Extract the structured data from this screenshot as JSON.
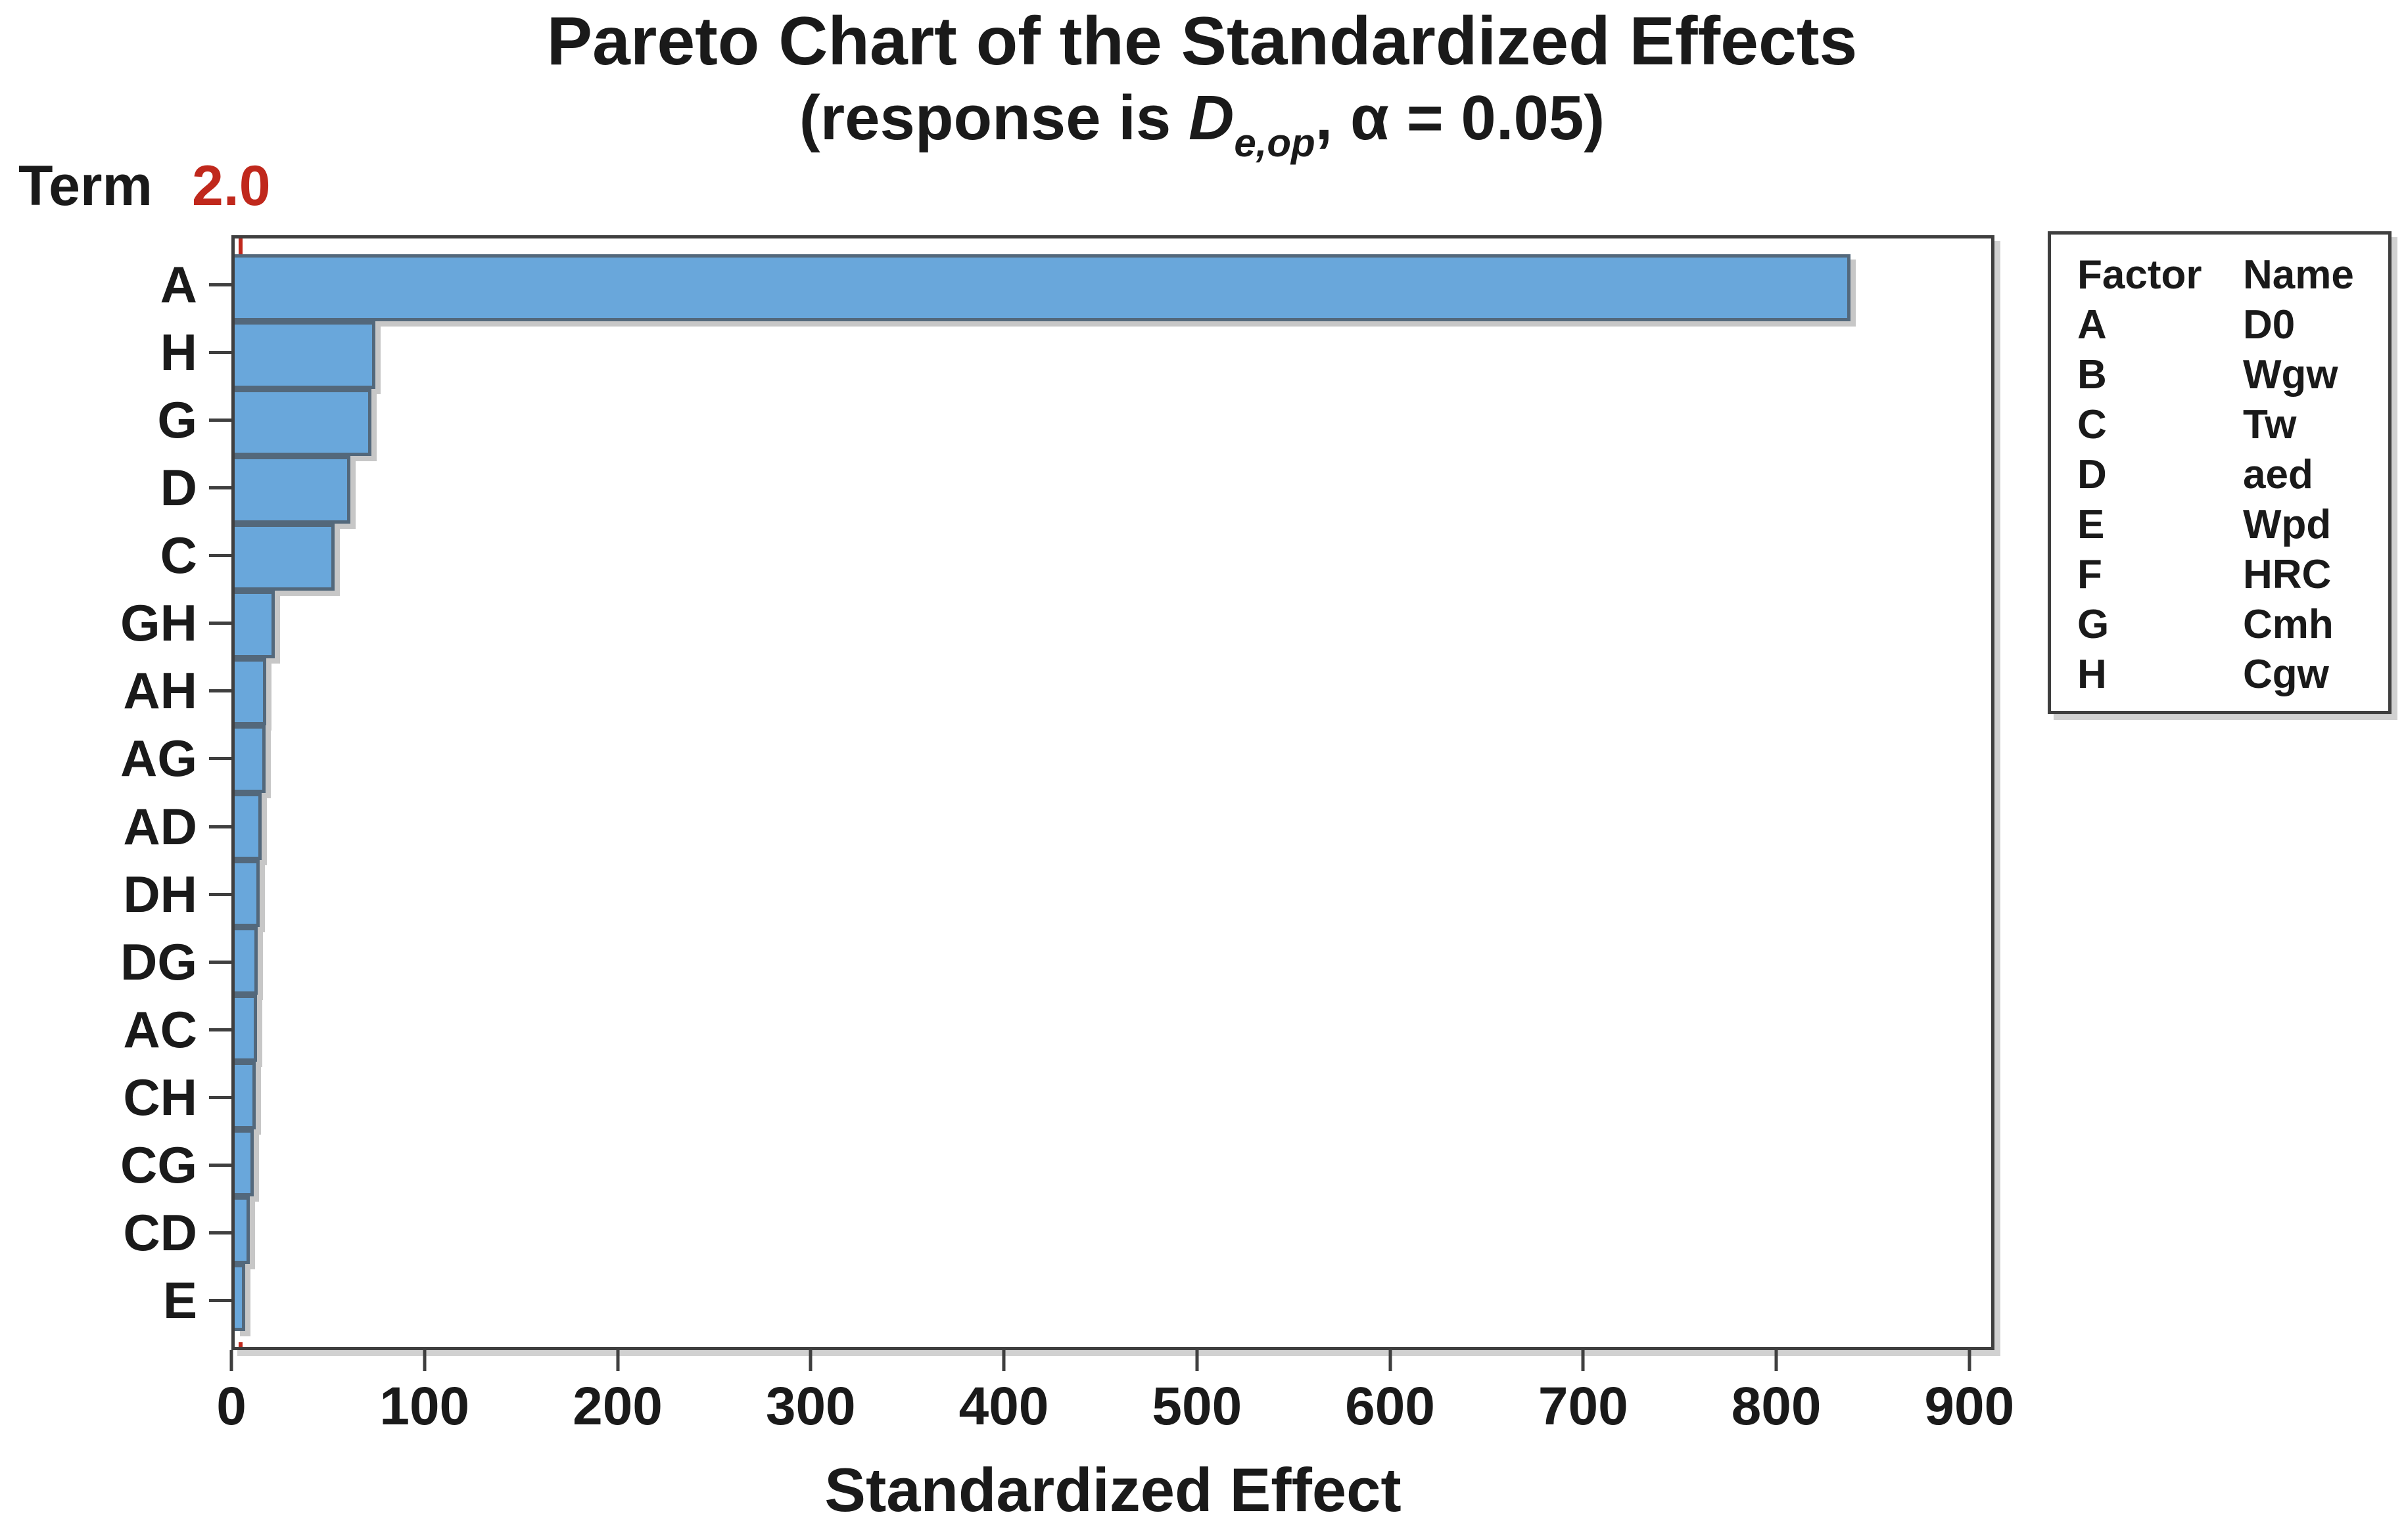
{
  "title": "Pareto Chart of the Standardized Effects",
  "subtitle": {
    "prefix": "(response is ",
    "response_symbol": "D",
    "response_subscript": "e,op",
    "separator": ", ",
    "alpha_symbol": "α",
    "alpha_text": " = 0.05)"
  },
  "y_axis": {
    "title": "Term"
  },
  "x_axis": {
    "title": "Standardized Effect",
    "ticks": [
      0,
      100,
      200,
      300,
      400,
      500,
      600,
      700,
      800,
      900
    ],
    "max": 913
  },
  "reference_line": {
    "value": 2.0,
    "label": "2.0"
  },
  "legend": {
    "headers": [
      "Factor",
      "Name"
    ],
    "rows": [
      {
        "factor": "A",
        "name": "D0"
      },
      {
        "factor": "B",
        "name": "Wgw"
      },
      {
        "factor": "C",
        "name": "Tw"
      },
      {
        "factor": "D",
        "name": "aed"
      },
      {
        "factor": "E",
        "name": "Wpd"
      },
      {
        "factor": "F",
        "name": "HRC"
      },
      {
        "factor": "G",
        "name": "Cmh"
      },
      {
        "factor": "H",
        "name": "Cgw"
      }
    ]
  },
  "colors": {
    "bar_fill": "#69A7DB",
    "bar_border": "#53687B",
    "frame": "#3F3F3F",
    "text": "#1A1A1A",
    "reference": "#C0281C"
  },
  "chart_data": {
    "type": "bar",
    "orientation": "horizontal",
    "title": "Pareto Chart of the Standardized Effects",
    "subtitle": "(response is De,op, α = 0.05)",
    "xlabel": "Standardized Effect",
    "ylabel": "Term",
    "categories": [
      "A",
      "H",
      "G",
      "D",
      "C",
      "GH",
      "AH",
      "AG",
      "AD",
      "DH",
      "DG",
      "AC",
      "CH",
      "CG",
      "CD",
      "E"
    ],
    "values": [
      840,
      73,
      71,
      60,
      52,
      21,
      16.5,
      16,
      14,
      13,
      12,
      11.5,
      11,
      10,
      8,
      5.5
    ],
    "xlim": [
      0,
      913
    ],
    "x_ticks": [
      0,
      100,
      200,
      300,
      400,
      500,
      600,
      700,
      800,
      900
    ],
    "reference_line": 2.0,
    "grid": false,
    "legend_position": "right"
  }
}
